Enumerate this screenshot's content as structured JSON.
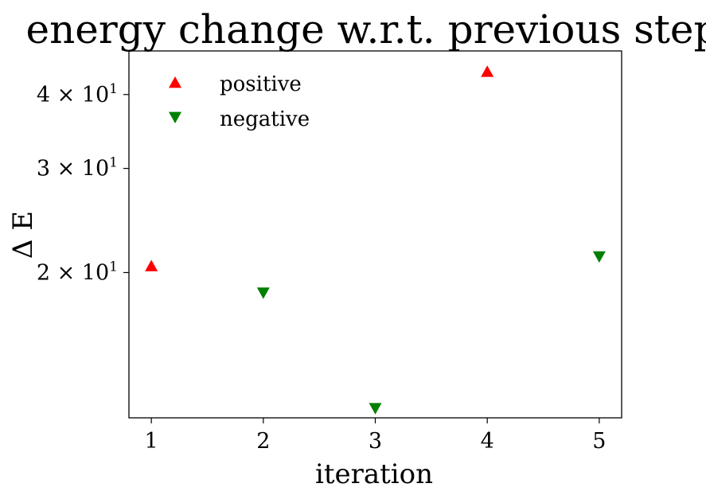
{
  "chart_data": {
    "type": "scatter",
    "title": "energy change w.r.t. previous step",
    "xlabel": "iteration",
    "ylabel": "Δ E",
    "yscale": "log",
    "xlim": [
      0.8,
      5.2
    ],
    "ylim": [
      11.36,
      47.4
    ],
    "grid": false,
    "legend_position": "top-left",
    "x_ticks": [
      1,
      2,
      3,
      4,
      5
    ],
    "x_tick_labels": [
      "1",
      "2",
      "3",
      "4",
      "5"
    ],
    "y_ticks": [
      20,
      30,
      40
    ],
    "y_tick_labels": [
      {
        "mantissa": "2 × 10",
        "exp": "1"
      },
      {
        "mantissa": "3 × 10",
        "exp": "1"
      },
      {
        "mantissa": "4 × 10",
        "exp": "1"
      }
    ],
    "series": [
      {
        "name": "positive",
        "marker": "triangle-up",
        "color": "#ff0000",
        "points": [
          {
            "x": 1,
            "y": 20.5
          },
          {
            "x": 4,
            "y": 43.7
          }
        ]
      },
      {
        "name": "negative",
        "marker": "triangle-down",
        "color": "#008000",
        "points": [
          {
            "x": 2,
            "y": 18.5
          },
          {
            "x": 3,
            "y": 11.8
          },
          {
            "x": 5,
            "y": 21.3
          }
        ]
      }
    ]
  }
}
